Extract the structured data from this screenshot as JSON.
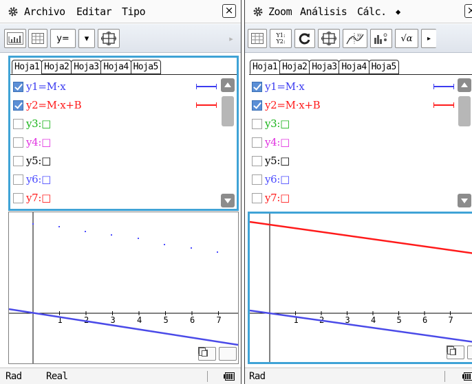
{
  "left": {
    "menu": {
      "file": "Archivo",
      "edit": "Editar",
      "type": "Tipo",
      "close": "×"
    },
    "toolbar": {
      "yeq_label": "y=",
      "dropdown_label": "▾",
      "scroll_right": "▸"
    },
    "tabs": [
      "Hoja1",
      "Hoja2",
      "Hoja3",
      "Hoja4",
      "Hoja5"
    ],
    "functions": [
      {
        "id": "y1",
        "text": "y1=M·x",
        "checked": true,
        "color": "#3c3cf0",
        "style_color": "#3c3cf0"
      },
      {
        "id": "y2",
        "text": "y2=M·x+B",
        "checked": true,
        "color": "#ff1a1a",
        "style_color": "#ff1a1a"
      },
      {
        "id": "y3",
        "text": "y3:□",
        "checked": false,
        "color": "#18b218"
      },
      {
        "id": "y4",
        "text": "y4:□",
        "checked": false,
        "color": "#e030e0"
      },
      {
        "id": "y5",
        "text": "y5:□",
        "checked": false,
        "color": "#000000"
      },
      {
        "id": "y6",
        "text": "y6:□",
        "checked": false,
        "color": "#4a4aff"
      },
      {
        "id": "y7",
        "text": "y7:□",
        "checked": false,
        "color": "#ff1a1a"
      }
    ],
    "graph": {
      "x_ticks": [
        "1",
        "2",
        "3",
        "4",
        "5",
        "6",
        "7"
      ]
    },
    "status": {
      "angle": "Rad",
      "mode": "Real"
    }
  },
  "right": {
    "menu": {
      "zoom": "Zoom",
      "analysis": "Análisis",
      "calc": "Cálc.",
      "arrow": "◆",
      "close": "×"
    },
    "toolbar": {
      "y12_label": "Y1:\nY2:",
      "sqrt_label": "√α",
      "scroll_right": "▸"
    },
    "tabs": [
      "Hoja1",
      "Hoja2",
      "Hoja3",
      "Hoja4",
      "Hoja5"
    ],
    "functions": [
      {
        "id": "y1",
        "text": "y1=M·x",
        "checked": true,
        "color": "#3c3cf0"
      },
      {
        "id": "y2",
        "text": "y2=M·x+B",
        "checked": true,
        "color": "#ff1a1a"
      },
      {
        "id": "y3",
        "text": "y3:□",
        "checked": false,
        "color": "#18b218"
      },
      {
        "id": "y4",
        "text": "y4:□",
        "checked": false,
        "color": "#e030e0"
      },
      {
        "id": "y5",
        "text": "y5:□",
        "checked": false,
        "color": "#000000"
      },
      {
        "id": "y6",
        "text": "y6:□",
        "checked": false,
        "color": "#4a4aff"
      },
      {
        "id": "y7",
        "text": "y7:□",
        "checked": false,
        "color": "#ff1a1a"
      }
    ],
    "graph": {
      "x_ticks": [
        "1",
        "2",
        "3",
        "4",
        "5",
        "6",
        "7"
      ]
    },
    "status": {
      "angle": "Rad"
    }
  }
}
